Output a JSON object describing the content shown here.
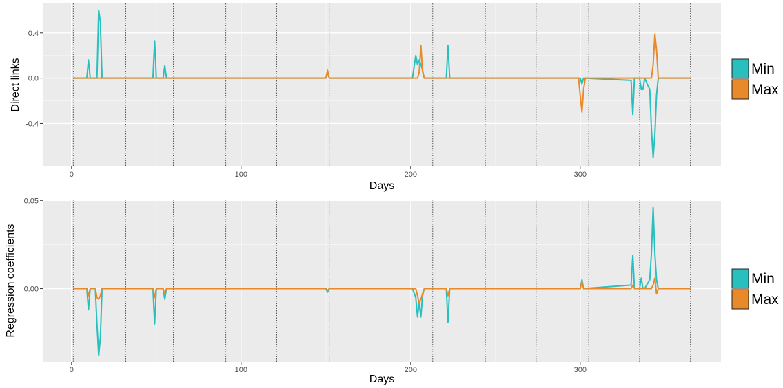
{
  "colors": {
    "panel_bg": "#ebebeb",
    "grid_major": "#ffffff",
    "min": "#2abfbf",
    "max": "#e8892a",
    "vline": "#333333"
  },
  "month_boundaries": [
    1,
    32,
    60,
    91,
    121,
    152,
    182,
    213,
    244,
    274,
    305,
    335,
    365
  ],
  "chart_data": [
    {
      "type": "line",
      "xlabel": "Days",
      "ylabel": "Direct links",
      "xlim": [
        -17,
        383
      ],
      "ylim": [
        -0.78,
        0.66
      ],
      "x_ticks": [
        0,
        100,
        200,
        300
      ],
      "x_tick_labels": [
        "0",
        "100",
        "200",
        "300"
      ],
      "y_ticks": [
        0.4,
        0.0,
        -0.4
      ],
      "y_tick_labels": [
        "0.4",
        "0.0",
        "-0.4"
      ],
      "grid": true,
      "legend": {
        "placement": "right",
        "entries": [
          "Min",
          "Max"
        ]
      },
      "series": [
        {
          "name": "Min",
          "x": [
            1,
            9,
            10,
            11,
            15,
            16,
            17,
            18,
            48,
            49,
            50,
            54,
            55,
            56,
            150,
            151,
            152,
            201,
            203,
            204,
            205,
            206,
            207,
            208,
            221,
            222,
            223,
            300,
            301,
            302,
            330,
            331,
            332,
            335,
            336,
            337,
            338,
            341,
            342,
            343,
            344,
            345,
            346,
            365
          ],
          "y": [
            0,
            0,
            0.16,
            0,
            0,
            0.6,
            0.5,
            0,
            0,
            0.33,
            0,
            0,
            0.11,
            0,
            0,
            0.05,
            0,
            0,
            0.2,
            0.12,
            0.16,
            0.12,
            0.07,
            0,
            0,
            0.29,
            0,
            0,
            -0.05,
            0,
            -0.02,
            -0.32,
            0,
            0,
            -0.1,
            -0.1,
            0,
            -0.1,
            -0.45,
            -0.7,
            -0.5,
            -0.15,
            0,
            0
          ]
        },
        {
          "name": "Max",
          "x": [
            1,
            150,
            151,
            152,
            204,
            205,
            206,
            207,
            208,
            299,
            300,
            301,
            302,
            303,
            342,
            343,
            344,
            345,
            346,
            365
          ],
          "y": [
            0,
            0,
            0.07,
            0,
            0,
            0.05,
            0.29,
            0.06,
            0,
            0,
            -0.15,
            -0.3,
            -0.1,
            0,
            0,
            0.12,
            0.39,
            0.25,
            0,
            0
          ]
        }
      ]
    },
    {
      "type": "line",
      "xlabel": "Days",
      "ylabel": "Regression coefficients",
      "xlim": [
        -17,
        383
      ],
      "ylim": [
        -0.0415,
        0.0505
      ],
      "x_ticks": [
        0,
        100,
        200,
        300
      ],
      "x_tick_labels": [
        "0",
        "100",
        "200",
        "300"
      ],
      "y_ticks": [
        0.05,
        0.0
      ],
      "y_tick_labels": [
        "0.05",
        "0.00"
      ],
      "grid": true,
      "legend": {
        "placement": "right",
        "entries": [
          "Min",
          "Max"
        ]
      },
      "series": [
        {
          "name": "Min",
          "x": [
            1,
            9,
            10,
            11,
            14,
            15,
            16,
            17,
            18,
            48,
            49,
            50,
            54,
            55,
            56,
            150,
            151,
            152,
            201,
            203,
            204,
            205,
            206,
            207,
            208,
            221,
            222,
            223,
            300,
            301,
            302,
            330,
            331,
            332,
            335,
            336,
            337,
            338,
            341,
            342,
            343,
            344,
            345,
            346,
            365
          ],
          "y": [
            0,
            0,
            -0.012,
            0,
            0,
            -0.02,
            -0.038,
            -0.028,
            0,
            0,
            -0.02,
            0,
            0,
            -0.006,
            0,
            0,
            -0.002,
            0,
            0,
            -0.005,
            -0.016,
            -0.008,
            -0.016,
            -0.004,
            0,
            0,
            -0.019,
            0,
            0,
            0.005,
            0,
            0.002,
            0.019,
            0,
            0,
            0.006,
            0,
            0,
            0.005,
            0.02,
            0.046,
            0.02,
            0.005,
            0,
            0
          ]
        },
        {
          "name": "Max",
          "x": [
            1,
            9,
            10,
            11,
            14,
            15,
            16,
            17,
            18,
            48,
            49,
            50,
            54,
            55,
            56,
            150,
            151,
            152,
            203,
            204,
            205,
            206,
            207,
            208,
            221,
            222,
            223,
            300,
            301,
            302,
            330,
            331,
            332,
            342,
            343,
            344,
            345,
            346,
            365
          ],
          "y": [
            0,
            0,
            -0.004,
            0,
            0,
            -0.005,
            -0.006,
            -0.004,
            0,
            0,
            -0.005,
            0,
            0,
            -0.003,
            0,
            0,
            -0.001,
            0,
            0,
            -0.004,
            -0.008,
            -0.006,
            -0.003,
            0,
            0,
            -0.004,
            0,
            0,
            0.004,
            0,
            0,
            0.002,
            0,
            0,
            0.002,
            0.006,
            -0.003,
            0,
            0
          ]
        }
      ]
    }
  ]
}
